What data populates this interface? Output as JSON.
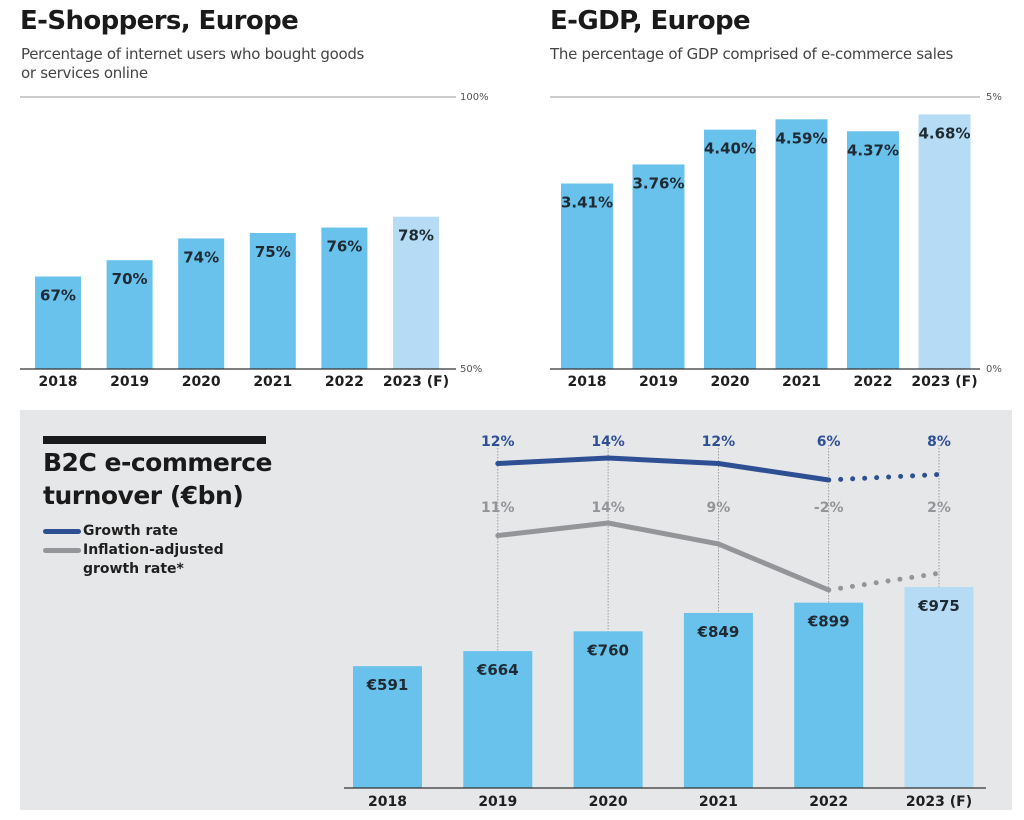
{
  "colors": {
    "bar_actual": "#69c2ec",
    "bar_forecast": "#b5dcf4",
    "growth_line": "#2f4f94",
    "inflation_line": "#939598",
    "panel_bg": "#e6e7e9"
  },
  "chart_data": [
    {
      "id": "e-shoppers",
      "type": "bar",
      "title": "E-Shoppers, Europe",
      "subtitle_lines": [
        "Percentage of internet users who bought goods",
        "or services online"
      ],
      "categories": [
        "2018",
        "2019",
        "2020",
        "2021",
        "2022",
        "2023 (F)"
      ],
      "values": [
        67,
        70,
        74,
        75,
        76,
        78
      ],
      "value_labels": [
        "67%",
        "70%",
        "74%",
        "75%",
        "76%",
        "78%"
      ],
      "forecast": [
        false,
        false,
        false,
        false,
        false,
        true
      ],
      "unit": "%",
      "ylim": [
        50,
        100
      ],
      "axis_labels": {
        "top": "100%",
        "bottom": "50%"
      },
      "xlabel": "",
      "ylabel": "",
      "grid": false
    },
    {
      "id": "e-gdp",
      "type": "bar",
      "title": "E-GDP, Europe",
      "subtitle_lines": [
        "The percentage of GDP comprised of e-commerce sales"
      ],
      "categories": [
        "2018",
        "2019",
        "2020",
        "2021",
        "2022",
        "2023 (F)"
      ],
      "values": [
        3.41,
        3.76,
        4.4,
        4.59,
        4.37,
        4.68
      ],
      "value_labels": [
        "3.41%",
        "3.76%",
        "4.40%",
        "4.59%",
        "4.37%",
        "4.68%"
      ],
      "forecast": [
        false,
        false,
        false,
        false,
        false,
        true
      ],
      "unit": "%",
      "ylim": [
        0,
        5
      ],
      "axis_labels": {
        "top": "5%",
        "bottom": "0%"
      },
      "xlabel": "",
      "ylabel": "",
      "grid": false
    },
    {
      "id": "b2c-turnover",
      "type": "bar+line",
      "title_lines": [
        "B2C e-commerce",
        "turnover (€bn)"
      ],
      "categories": [
        "2018",
        "2019",
        "2020",
        "2021",
        "2022",
        "2023 (F)"
      ],
      "values": [
        591,
        664,
        760,
        849,
        899,
        975
      ],
      "value_labels": [
        "€591",
        "€664",
        "€760",
        "€849",
        "€899",
        "€975"
      ],
      "forecast": [
        false,
        false,
        false,
        false,
        false,
        true
      ],
      "unit": "€bn",
      "legend": [
        {
          "name": "Growth rate",
          "color_key": "growth_line"
        },
        {
          "name": "Inflation-adjusted growth rate*",
          "lines": [
            "Inflation-adjusted",
            "growth rate*"
          ],
          "color_key": "inflation_line"
        }
      ],
      "legend_position": "left",
      "series": [
        {
          "name": "Growth rate",
          "categories": [
            "2019",
            "2020",
            "2021",
            "2022",
            "2023 (F)"
          ],
          "values": [
            12,
            14,
            12,
            6,
            8
          ],
          "labels": [
            "12%",
            "14%",
            "12%",
            "6%",
            "8%"
          ],
          "forecast_from_index": 3
        },
        {
          "name": "Inflation-adjusted growth rate*",
          "categories": [
            "2019",
            "2020",
            "2021",
            "2022",
            "2023 (F)"
          ],
          "values": [
            11,
            14,
            9,
            -2,
            2
          ],
          "labels": [
            "11%",
            "14%",
            "9%",
            "-2%",
            "2%"
          ],
          "forecast_from_index": 3
        }
      ],
      "grid": false
    }
  ]
}
